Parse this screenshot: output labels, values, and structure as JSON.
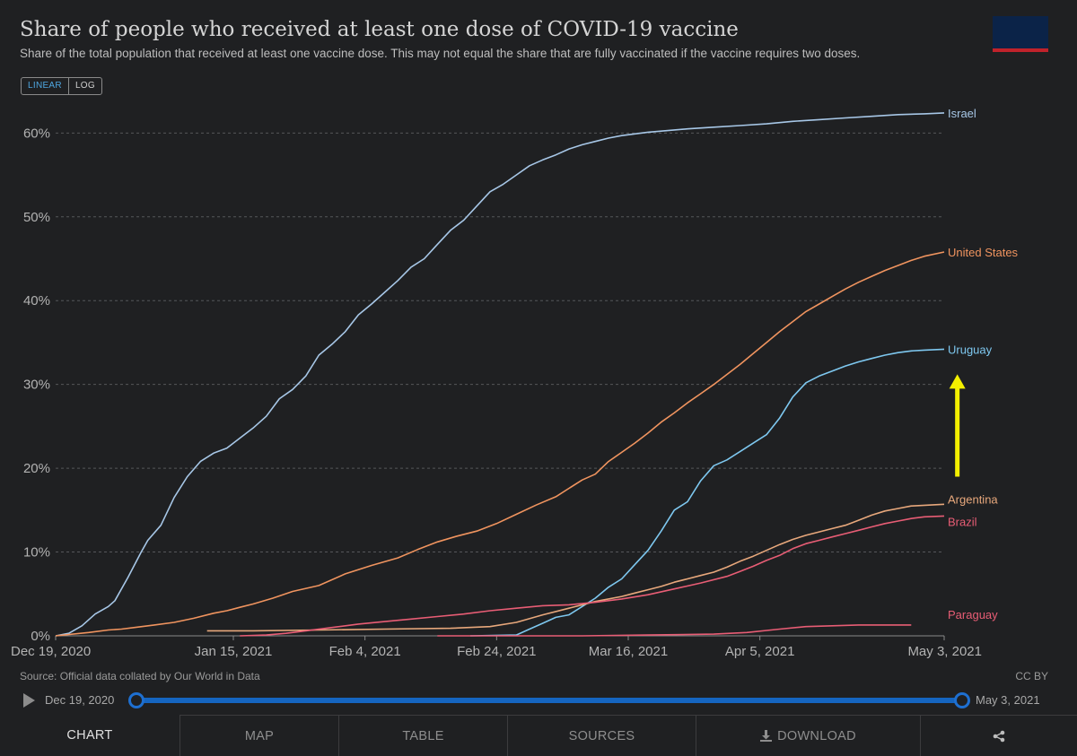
{
  "header": {
    "title": "Share of people who received at least one dose of COVID-19 vaccine",
    "subtitle": "Share of the total population that received at least one vaccine dose. This may not equal the share that are fully vaccinated if the vaccine requires two doses."
  },
  "scale": {
    "linear": "LINEAR",
    "log": "LOG"
  },
  "footer": {
    "source": "Source: Official data collated by Our World in Data",
    "license": "CC BY"
  },
  "timeline": {
    "start": "Dec 19, 2020",
    "end": "May 3, 2021",
    "start_fraction": 0,
    "end_fraction": 1
  },
  "tabs": {
    "chart": "CHART",
    "map": "MAP",
    "table": "TABLE",
    "sources": "SOURCES",
    "download": "DOWNLOAD"
  },
  "annotation": {
    "arrow_color": "#f4f000",
    "arrow_from_percent": 19,
    "arrow_to_percent": 31,
    "arrow_date_day": 137
  },
  "chart_data": {
    "type": "line",
    "title": "Share of people who received at least one dose of COVID-19 vaccine",
    "xlabel": "",
    "ylabel": "",
    "x_unit": "days since Dec 19, 2020",
    "xlim": [
      0,
      135
    ],
    "ylim": [
      0,
      62.5
    ],
    "y_ticks": [
      0,
      10,
      20,
      30,
      40,
      50,
      60
    ],
    "y_tick_labels": [
      "0%",
      "10%",
      "20%",
      "30%",
      "40%",
      "50%",
      "60%"
    ],
    "x_ticks": [
      0,
      27,
      47,
      67,
      87,
      107,
      135
    ],
    "x_tick_labels": [
      "Dec 19, 2020",
      "Jan 15, 2021",
      "Feb 4, 2021",
      "Feb 24, 2021",
      "Mar 16, 2021",
      "Apr 5, 2021",
      "May 3, 2021"
    ],
    "grid": true,
    "series": [
      {
        "name": "Israel",
        "color": "#a7c7e7",
        "points": [
          [
            0,
            0
          ],
          [
            2,
            0.3
          ],
          [
            4,
            1.2
          ],
          [
            6,
            2.6
          ],
          [
            8,
            3.5
          ],
          [
            9,
            4.2
          ],
          [
            11,
            7
          ],
          [
            13,
            10
          ],
          [
            14,
            11.4
          ],
          [
            16,
            13.2
          ],
          [
            18,
            16.5
          ],
          [
            20,
            19
          ],
          [
            22,
            20.8
          ],
          [
            24,
            21.8
          ],
          [
            26,
            22.4
          ],
          [
            28,
            23.6
          ],
          [
            30,
            24.8
          ],
          [
            32,
            26.2
          ],
          [
            34,
            28.3
          ],
          [
            36,
            29.4
          ],
          [
            38,
            31
          ],
          [
            40,
            33.5
          ],
          [
            42,
            34.8
          ],
          [
            44,
            36.3
          ],
          [
            46,
            38.3
          ],
          [
            48,
            39.6
          ],
          [
            50,
            41
          ],
          [
            52,
            42.4
          ],
          [
            54,
            44
          ],
          [
            56,
            45
          ],
          [
            58,
            46.7
          ],
          [
            60,
            48.4
          ],
          [
            62,
            49.6
          ],
          [
            64,
            51.3
          ],
          [
            66,
            53
          ],
          [
            68,
            53.9
          ],
          [
            70,
            55
          ],
          [
            72,
            56.1
          ],
          [
            74,
            56.8
          ],
          [
            76,
            57.4
          ],
          [
            78,
            58.1
          ],
          [
            80,
            58.6
          ],
          [
            82,
            59
          ],
          [
            84,
            59.4
          ],
          [
            86,
            59.7
          ],
          [
            88,
            59.9
          ],
          [
            90,
            60.1
          ],
          [
            93,
            60.3
          ],
          [
            96,
            60.5
          ],
          [
            100,
            60.7
          ],
          [
            104,
            60.9
          ],
          [
            108,
            61.1
          ],
          [
            112,
            61.4
          ],
          [
            116,
            61.6
          ],
          [
            120,
            61.8
          ],
          [
            124,
            62
          ],
          [
            128,
            62.2
          ],
          [
            132,
            62.3
          ],
          [
            135,
            62.4
          ]
        ]
      },
      {
        "name": "United States",
        "color": "#f0945f",
        "points": [
          [
            0,
            0
          ],
          [
            5,
            0.4
          ],
          [
            8,
            0.7
          ],
          [
            10,
            0.8
          ],
          [
            12,
            1
          ],
          [
            15,
            1.3
          ],
          [
            18,
            1.6
          ],
          [
            21,
            2.1
          ],
          [
            24,
            2.7
          ],
          [
            26,
            3
          ],
          [
            28,
            3.4
          ],
          [
            30,
            3.8
          ],
          [
            33,
            4.5
          ],
          [
            36,
            5.3
          ],
          [
            40,
            6
          ],
          [
            44,
            7.4
          ],
          [
            48,
            8.4
          ],
          [
            52,
            9.3
          ],
          [
            55,
            10.3
          ],
          [
            58,
            11.2
          ],
          [
            61,
            11.9
          ],
          [
            64,
            12.5
          ],
          [
            67,
            13.4
          ],
          [
            70,
            14.5
          ],
          [
            73,
            15.6
          ],
          [
            76,
            16.6
          ],
          [
            78,
            17.6
          ],
          [
            80,
            18.6
          ],
          [
            82,
            19.3
          ],
          [
            84,
            20.8
          ],
          [
            86,
            21.9
          ],
          [
            88,
            23
          ],
          [
            90,
            24.2
          ],
          [
            92,
            25.5
          ],
          [
            94,
            26.6
          ],
          [
            96,
            27.8
          ],
          [
            98,
            28.9
          ],
          [
            100,
            30
          ],
          [
            102,
            31.2
          ],
          [
            104,
            32.4
          ],
          [
            106,
            33.7
          ],
          [
            108,
            35
          ],
          [
            110,
            36.3
          ],
          [
            112,
            37.5
          ],
          [
            114,
            38.7
          ],
          [
            116,
            39.6
          ],
          [
            118,
            40.5
          ],
          [
            120,
            41.4
          ],
          [
            122,
            42.2
          ],
          [
            124,
            42.9
          ],
          [
            126,
            43.6
          ],
          [
            128,
            44.2
          ],
          [
            130,
            44.8
          ],
          [
            132,
            45.3
          ],
          [
            135,
            45.8
          ]
        ]
      },
      {
        "name": "Uruguay",
        "color": "#7ec8f0",
        "points": [
          [
            63,
            0
          ],
          [
            70,
            0.1
          ],
          [
            72,
            0.8
          ],
          [
            74,
            1.5
          ],
          [
            76,
            2.2
          ],
          [
            78,
            2.5
          ],
          [
            80,
            3.5
          ],
          [
            82,
            4.5
          ],
          [
            84,
            5.8
          ],
          [
            86,
            6.8
          ],
          [
            88,
            8.5
          ],
          [
            90,
            10.2
          ],
          [
            92,
            12.5
          ],
          [
            94,
            15
          ],
          [
            96,
            16
          ],
          [
            98,
            18.5
          ],
          [
            100,
            20.3
          ],
          [
            102,
            21
          ],
          [
            104,
            22
          ],
          [
            106,
            23
          ],
          [
            108,
            24
          ],
          [
            110,
            26
          ],
          [
            112,
            28.5
          ],
          [
            114,
            30.2
          ],
          [
            116,
            31
          ],
          [
            118,
            31.6
          ],
          [
            120,
            32.2
          ],
          [
            122,
            32.7
          ],
          [
            124,
            33.1
          ],
          [
            126,
            33.5
          ],
          [
            128,
            33.8
          ],
          [
            130,
            34
          ],
          [
            132,
            34.1
          ],
          [
            135,
            34.2
          ]
        ]
      },
      {
        "name": "Argentina",
        "color": "#e8a87c",
        "points": [
          [
            23,
            0.6
          ],
          [
            30,
            0.6
          ],
          [
            40,
            0.7
          ],
          [
            50,
            0.8
          ],
          [
            60,
            0.9
          ],
          [
            66,
            1.1
          ],
          [
            70,
            1.6
          ],
          [
            74,
            2.5
          ],
          [
            78,
            3.3
          ],
          [
            82,
            4.1
          ],
          [
            86,
            4.7
          ],
          [
            88,
            5.1
          ],
          [
            90,
            5.5
          ],
          [
            92,
            5.9
          ],
          [
            94,
            6.4
          ],
          [
            96,
            6.8
          ],
          [
            98,
            7.2
          ],
          [
            100,
            7.6
          ],
          [
            102,
            8.2
          ],
          [
            104,
            8.9
          ],
          [
            106,
            9.5
          ],
          [
            108,
            10.2
          ],
          [
            110,
            10.9
          ],
          [
            112,
            11.5
          ],
          [
            114,
            12
          ],
          [
            116,
            12.4
          ],
          [
            118,
            12.8
          ],
          [
            120,
            13.2
          ],
          [
            122,
            13.8
          ],
          [
            124,
            14.4
          ],
          [
            126,
            14.9
          ],
          [
            128,
            15.2
          ],
          [
            130,
            15.5
          ],
          [
            135,
            15.7
          ]
        ]
      },
      {
        "name": "Brazil",
        "color": "#e85d75",
        "points": [
          [
            28,
            0
          ],
          [
            32,
            0.1
          ],
          [
            35,
            0.3
          ],
          [
            38,
            0.6
          ],
          [
            42,
            1
          ],
          [
            46,
            1.4
          ],
          [
            50,
            1.7
          ],
          [
            54,
            2
          ],
          [
            58,
            2.3
          ],
          [
            62,
            2.6
          ],
          [
            66,
            3
          ],
          [
            70,
            3.3
          ],
          [
            74,
            3.6
          ],
          [
            78,
            3.7
          ],
          [
            82,
            4
          ],
          [
            86,
            4.4
          ],
          [
            90,
            4.9
          ],
          [
            94,
            5.6
          ],
          [
            98,
            6.3
          ],
          [
            102,
            7.1
          ],
          [
            104,
            7.7
          ],
          [
            106,
            8.3
          ],
          [
            108,
            9
          ],
          [
            110,
            9.6
          ],
          [
            112,
            10.4
          ],
          [
            114,
            11
          ],
          [
            116,
            11.4
          ],
          [
            118,
            11.8
          ],
          [
            120,
            12.2
          ],
          [
            122,
            12.6
          ],
          [
            124,
            13
          ],
          [
            126,
            13.4
          ],
          [
            128,
            13.7
          ],
          [
            130,
            14
          ],
          [
            132,
            14.2
          ],
          [
            135,
            14.3
          ]
        ]
      },
      {
        "name": "Paraguay",
        "color": "#e85d75",
        "points": [
          [
            58,
            0
          ],
          [
            70,
            0
          ],
          [
            80,
            0
          ],
          [
            90,
            0.1
          ],
          [
            100,
            0.2
          ],
          [
            105,
            0.4
          ],
          [
            110,
            0.8
          ],
          [
            114,
            1.1
          ],
          [
            118,
            1.2
          ],
          [
            122,
            1.3
          ],
          [
            130,
            1.3
          ]
        ]
      }
    ]
  }
}
